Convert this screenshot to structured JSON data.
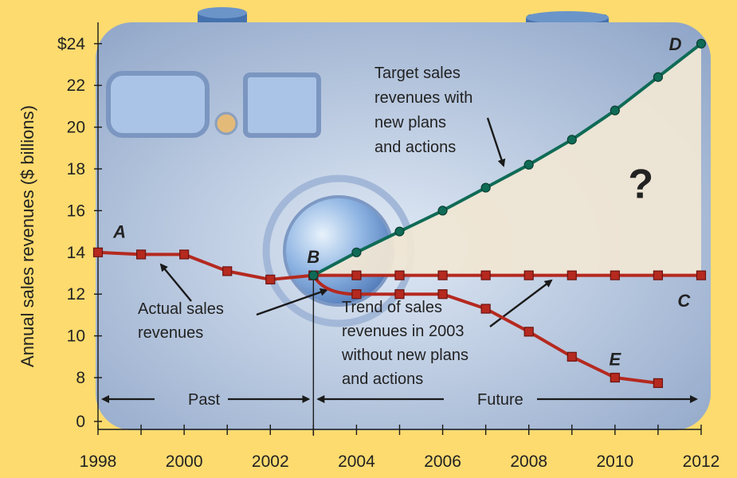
{
  "chart_data": {
    "type": "line",
    "title": "",
    "xlabel": "",
    "ylabel": "Annual sales revenues ($ billions)",
    "x_ticks": [
      1998,
      2000,
      2002,
      2004,
      2006,
      2008,
      2010,
      2012
    ],
    "y_ticks": [
      {
        "value": 0,
        "label": "0"
      },
      {
        "value": 8,
        "label": "8"
      },
      {
        "value": 10,
        "label": "10"
      },
      {
        "value": 12,
        "label": "12"
      },
      {
        "value": 14,
        "label": "14"
      },
      {
        "value": 16,
        "label": "16"
      },
      {
        "value": 18,
        "label": "18"
      },
      {
        "value": 20,
        "label": "20"
      },
      {
        "value": 22,
        "label": "22"
      },
      {
        "value": 24,
        "label": "$24"
      }
    ],
    "xlim": [
      1998,
      2012
    ],
    "y_axis_break": "between 0 and 8",
    "series": [
      {
        "key": "actual",
        "color": "#b5291f",
        "marker": "square",
        "points": [
          [
            1998,
            14.0
          ],
          [
            1999,
            13.9
          ],
          [
            2000,
            13.9
          ],
          [
            2001,
            13.1
          ],
          [
            2002,
            12.7
          ],
          [
            2003,
            12.9
          ]
        ]
      },
      {
        "key": "target",
        "color": "#0f6b56",
        "marker": "circle",
        "points": [
          [
            2003,
            12.9
          ],
          [
            2004,
            14.0
          ],
          [
            2005,
            15.0
          ],
          [
            2006,
            16.0
          ],
          [
            2007,
            17.1
          ],
          [
            2008,
            18.2
          ],
          [
            2009,
            19.4
          ],
          [
            2010,
            20.8
          ],
          [
            2011,
            22.4
          ],
          [
            2012,
            24.0
          ]
        ]
      },
      {
        "key": "trend",
        "color": "#b5291f",
        "marker": "square",
        "points": [
          [
            2003,
            12.9
          ],
          [
            2004,
            12.9
          ],
          [
            2005,
            12.9
          ],
          [
            2006,
            12.9
          ],
          [
            2007,
            12.9
          ],
          [
            2008,
            12.9
          ],
          [
            2009,
            12.9
          ],
          [
            2010,
            12.9
          ],
          [
            2011,
            12.9
          ],
          [
            2012,
            12.9
          ]
        ]
      },
      {
        "key": "decline",
        "color": "#b5291f",
        "marker": "square",
        "points": [
          [
            2004,
            12.0
          ],
          [
            2005,
            12.0
          ],
          [
            2006,
            12.0
          ],
          [
            2007,
            11.3
          ],
          [
            2008,
            10.2
          ],
          [
            2009,
            9.0
          ],
          [
            2010,
            8.0
          ],
          [
            2011,
            7.0
          ]
        ]
      }
    ],
    "point_labels": [
      {
        "text": "A",
        "x": 1998.5,
        "y": 15.0
      },
      {
        "text": "B",
        "x": 2003.0,
        "y": 13.8
      },
      {
        "text": "C",
        "x": 2011.6,
        "y": 11.7
      },
      {
        "text": "D",
        "x": 2011.4,
        "y": 24.0
      },
      {
        "text": "E",
        "x": 2010.0,
        "y": 8.9
      }
    ],
    "annotations": {
      "target": [
        "Target sales",
        "revenues with",
        "new plans",
        "and actions"
      ],
      "actual": [
        "Actual sales",
        "revenues"
      ],
      "trend": [
        "Trend of sales",
        "revenues in 2003",
        "without new plans",
        "and actions"
      ],
      "question": "?",
      "past": "Past",
      "future": "Future"
    },
    "colors": {
      "page_background": "#fddb6f",
      "gap_fill": "#efe6d4",
      "panel_light": "#d9e5f2",
      "panel_dark": "#8fa5c8"
    }
  }
}
